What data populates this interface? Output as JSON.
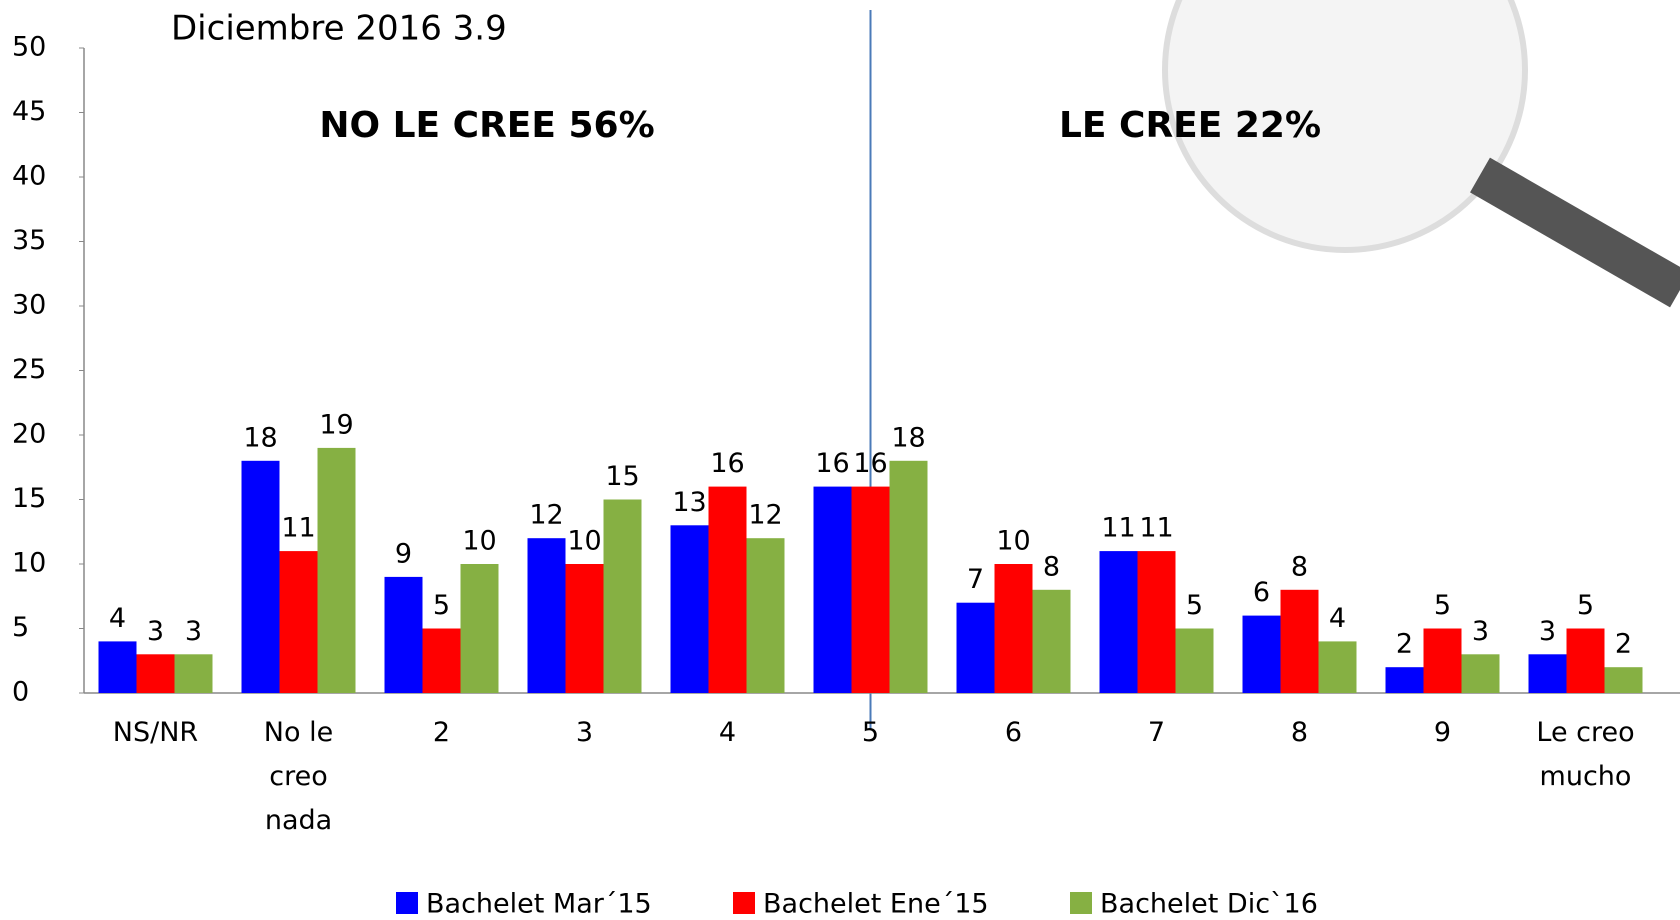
{
  "chart_data": {
    "type": "bar",
    "title": "Diciembre 2016  3.9",
    "annotations": [
      "NO LE CREE 56%",
      "LE CREE 22%"
    ],
    "categories": [
      "NS/NR",
      "No le creo nada",
      "2",
      "3",
      "4",
      "5",
      "6",
      "7",
      "8",
      "9",
      "Le creo mucho"
    ],
    "series": [
      {
        "name": "Bachelet Mar´15",
        "color": "#0000ff",
        "values": [
          4,
          18,
          9,
          12,
          13,
          16,
          7,
          11,
          6,
          2,
          3
        ]
      },
      {
        "name": "Bachelet Ene´15",
        "color": "#ff0000",
        "values": [
          3,
          11,
          5,
          10,
          16,
          16,
          10,
          11,
          8,
          5,
          5
        ]
      },
      {
        "name": "Bachelet Dic`16",
        "color": "#86b043",
        "values": [
          3,
          19,
          10,
          15,
          12,
          18,
          8,
          5,
          4,
          3,
          2
        ]
      }
    ],
    "ylim": [
      0,
      50
    ],
    "yticks": [
      0,
      5,
      10,
      15,
      20,
      25,
      30,
      35,
      40,
      45,
      50
    ],
    "grid": false
  }
}
